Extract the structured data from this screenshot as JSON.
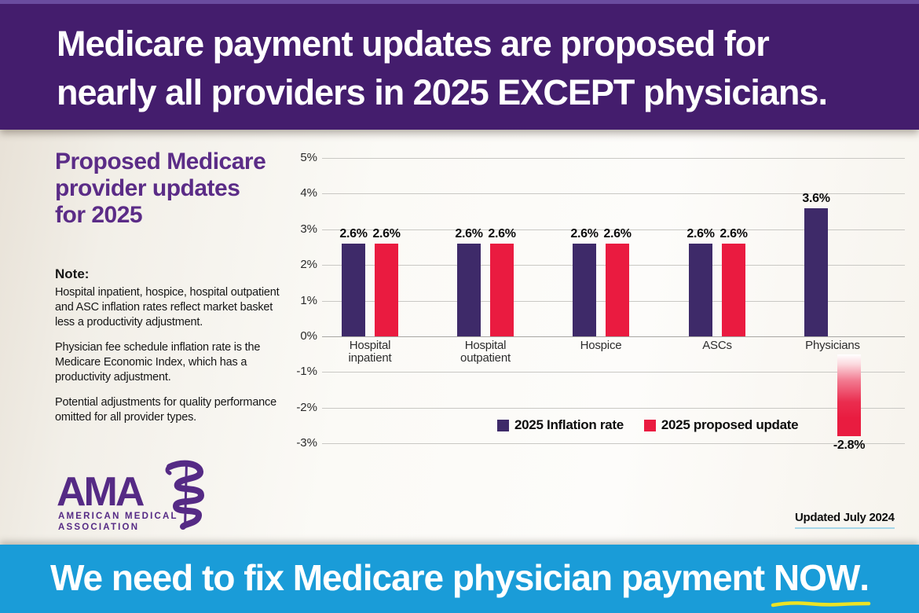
{
  "banner_top": {
    "line1": "Medicare payment updates are proposed for",
    "line2": "nearly all providers in 2025 EXCEPT physicians."
  },
  "sidebar": {
    "title": "Proposed Medicare provider updates for 2025",
    "title_lines": [
      "Proposed Medicare",
      "provider updates",
      "for 2025"
    ],
    "note_label": "Note:",
    "notes": [
      "Hospital inpatient, hospice, hospital outpatient and ASC inflation rates reflect market basket less a productivity adjustment.",
      "Physician fee schedule inflation rate is the Medicare Economic Index, which has a productivity adjustment.",
      "Potential adjustments for quality performance omitted for all provider types."
    ]
  },
  "logo": {
    "acronym": "AMA",
    "sub_line1": "AMERICAN MEDICAL",
    "sub_line2": "ASSOCIATION"
  },
  "chart_data": {
    "type": "bar",
    "title": "Proposed Medicare provider updates for 2025",
    "categories": [
      "Hospital\ninpatient",
      "Hospital\noutpatient",
      "Hospice",
      "ASCs",
      "Physicians"
    ],
    "series": [
      {
        "name": "2025 Inflation rate",
        "color": "#3e2a69",
        "values": [
          2.6,
          2.6,
          2.6,
          2.6,
          3.6
        ]
      },
      {
        "name": "2025 proposed update",
        "color": "#ea1b40",
        "values": [
          2.6,
          2.6,
          2.6,
          2.6,
          -2.8
        ]
      }
    ],
    "value_label_format": "percent_one_decimal",
    "y_ticks": [
      "5%",
      "4%",
      "3%",
      "2%",
      "1%",
      "0%",
      "-1%",
      "-2%",
      "-3%"
    ],
    "ylim": [
      -3,
      5
    ],
    "xlabel": "",
    "ylabel": "",
    "grid": true,
    "legend_position": "inside-bottom-right"
  },
  "footer_note": "Updated July 2024",
  "banner_bottom": {
    "text_before": "We need to fix Medicare physician payment ",
    "highlight": "NOW",
    "suffix": "."
  },
  "colors": {
    "banner_purple": "#441d6d",
    "banner_purple_edge": "#6a4c9f",
    "heading_purple": "#5b2c87",
    "logo_purple": "#552a85",
    "bar_purple": "#3e2a69",
    "bar_red": "#ea1b40",
    "banner_blue": "#1a9cd8",
    "highlight_yellow": "#ece224",
    "updated_underline": "#a5d6e8"
  }
}
